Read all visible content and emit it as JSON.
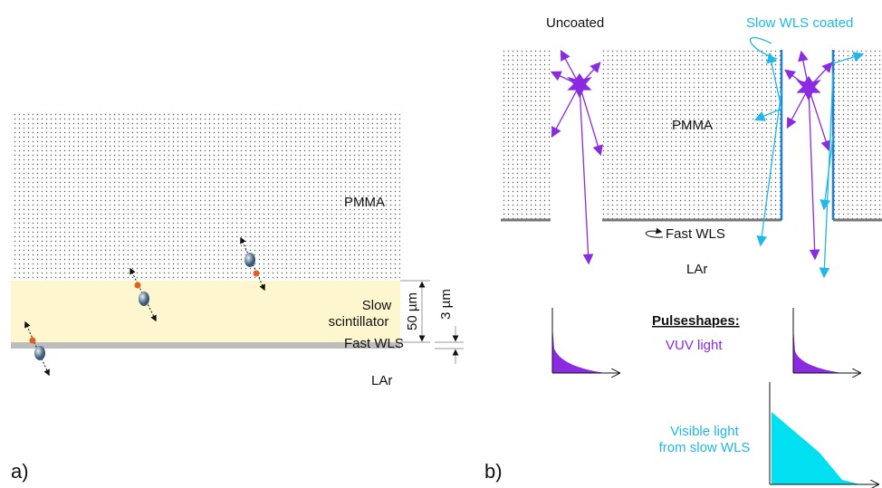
{
  "panel_a": {
    "label": "a)",
    "pmma": "PMMA",
    "slow_scintillator": [
      "Slow",
      "scintillator"
    ],
    "fast_wls": "Fast WLS",
    "lar": "LAr",
    "thickness_scintillator": "50 µm",
    "thickness_wls": "3 µm"
  },
  "panel_b": {
    "label": "b)",
    "uncoated": "Uncoated",
    "slow_wls_coated": "Slow WLS coated",
    "pmma": "PMMA",
    "fast_wls": "Fast WLS",
    "lar": "LAr",
    "pulseshapes": "Pulseshapes:",
    "vuv_light": "VUV light",
    "visible_light": [
      "Visible light",
      "from slow WLS"
    ]
  }
}
